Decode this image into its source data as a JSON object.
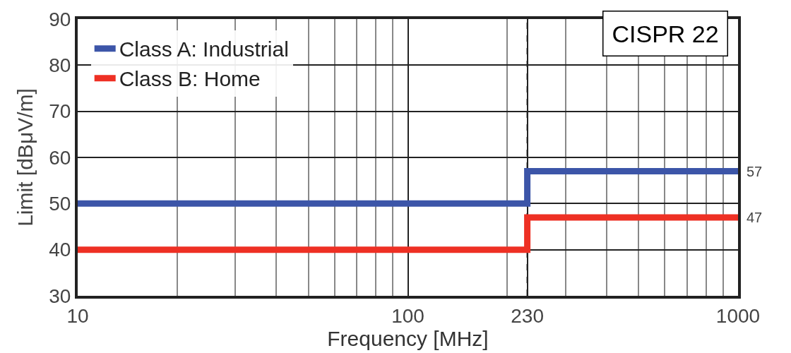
{
  "chart_data": {
    "type": "step",
    "xlabel": "Frequency [MHz]",
    "ylabel": "Limit [dBμV/m]",
    "x": [
      10,
      230,
      1000
    ],
    "series": [
      {
        "name": "Class A: Industrial",
        "color": "#3c55a8",
        "values": [
          50,
          57,
          57
        ]
      },
      {
        "name": "Class B: Home",
        "color": "#ee3024",
        "values": [
          40,
          47,
          47
        ]
      }
    ],
    "log": "x",
    "xlim": [
      10,
      1000
    ],
    "xticks": [
      10,
      100,
      230,
      1000
    ],
    "ylim": [
      30,
      90
    ],
    "yticks": [
      30,
      40,
      50,
      60,
      70,
      80,
      90
    ],
    "grid": true,
    "legend": "top left",
    "ref_lines": [
      {
        "axis": "x",
        "value": 230,
        "label": null,
        "color": "#000000",
        "line_style": "dashed"
      }
    ],
    "annotations": [
      "CISPR 22",
      {
        "text": "57",
        "x": 1000,
        "y": 57
      },
      {
        "text": "47",
        "x": 1000,
        "y": 47
      }
    ]
  }
}
